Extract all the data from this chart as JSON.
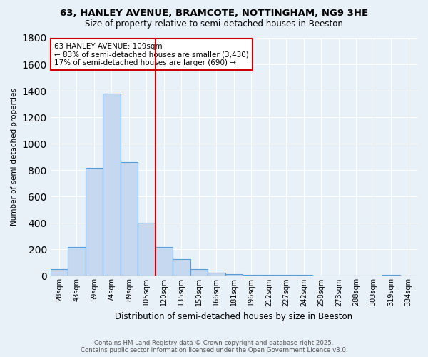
{
  "title1": "63, HANLEY AVENUE, BRAMCOTE, NOTTINGHAM, NG9 3HE",
  "title2": "Size of property relative to semi-detached houses in Beeston",
  "xlabel": "Distribution of semi-detached houses by size in Beeston",
  "ylabel": "Number of semi-detached properties",
  "footnote1": "Contains HM Land Registry data © Crown copyright and database right 2025.",
  "footnote2": "Contains public sector information licensed under the Open Government Licence v3.0.",
  "annotation_line1": "63 HANLEY AVENUE: 109sqm",
  "annotation_line2": "← 83% of semi-detached houses are smaller (3,430)",
  "annotation_line3": "17% of semi-detached houses are larger (690) →",
  "bar_heights": [
    50,
    220,
    820,
    1380,
    860,
    400,
    220,
    125,
    50,
    25,
    15,
    10,
    8,
    5,
    5,
    3,
    2,
    2,
    0,
    5,
    2
  ],
  "tick_labels": [
    "28sqm",
    "43sqm",
    "59sqm",
    "74sqm",
    "89sqm",
    "105sqm",
    "120sqm",
    "135sqm",
    "150sqm",
    "166sqm",
    "181sqm",
    "196sqm",
    "212sqm",
    "227sqm",
    "242sqm",
    "258sqm",
    "273sqm",
    "288sqm",
    "303sqm",
    "319sqm",
    "334sqm"
  ],
  "bar_color": "#C5D8EF",
  "bar_edge_color": "#5B9BD5",
  "red_line_color": "#CC0000",
  "red_line_bin": 5,
  "ylim": [
    0,
    1800
  ],
  "yticks": [
    0,
    200,
    400,
    600,
    800,
    1000,
    1200,
    1400,
    1600,
    1800
  ],
  "background_color": "#E8F0F8",
  "grid_color": "#FFFFFF",
  "annotation_box_color": "#FFFFFF",
  "annotation_box_edge": "#CC0000"
}
